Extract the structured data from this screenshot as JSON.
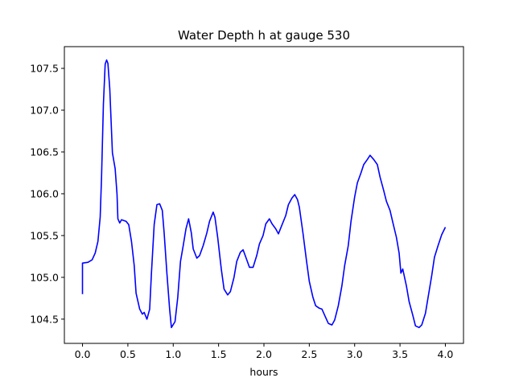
{
  "chart_data": {
    "type": "line",
    "title": "Water Depth h at gauge 530",
    "xlabel": "hours",
    "ylabel": "",
    "xlim": [
      -0.2,
      4.2
    ],
    "ylim": [
      104.21,
      107.76
    ],
    "xticks": [
      0.0,
      0.5,
      1.0,
      1.5,
      2.0,
      2.5,
      3.0,
      3.5,
      4.0
    ],
    "xtick_labels": [
      "0.0",
      "0.5",
      "1.0",
      "1.5",
      "2.0",
      "2.5",
      "3.0",
      "3.5",
      "4.0"
    ],
    "yticks": [
      104.5,
      105.0,
      105.5,
      106.0,
      106.5,
      107.0,
      107.5
    ],
    "ytick_labels": [
      "104.5",
      "105.0",
      "105.5",
      "106.0",
      "106.5",
      "107.0",
      "107.5"
    ],
    "grid": false,
    "series": [
      {
        "name": "h",
        "color": "#0000ff",
        "x": [
          0,
          0,
          0.06,
          0.106,
          0.14,
          0.17,
          0.195,
          0.21,
          0.23,
          0.25,
          0.266,
          0.28,
          0.3,
          0.33,
          0.36,
          0.38,
          0.39,
          0.41,
          0.43,
          0.48,
          0.51,
          0.54,
          0.57,
          0.59,
          0.63,
          0.66,
          0.68,
          0.71,
          0.74,
          0.76,
          0.79,
          0.82,
          0.85,
          0.88,
          0.9,
          0.93,
          0.96,
          0.98,
          1.02,
          1.05,
          1.08,
          1.11,
          1.14,
          1.17,
          1.2,
          1.22,
          1.26,
          1.29,
          1.33,
          1.37,
          1.4,
          1.44,
          1.46,
          1.49,
          1.53,
          1.56,
          1.6,
          1.63,
          1.67,
          1.7,
          1.74,
          1.77,
          1.8,
          1.84,
          1.88,
          1.92,
          1.95,
          1.99,
          2.02,
          2.06,
          2.09,
          2.13,
          2.16,
          2.2,
          2.24,
          2.27,
          2.31,
          2.34,
          2.37,
          2.39,
          2.43,
          2.47,
          2.5,
          2.54,
          2.57,
          2.61,
          2.64,
          2.68,
          2.71,
          2.75,
          2.78,
          2.82,
          2.86,
          2.89,
          2.93,
          2.96,
          3.0,
          3.03,
          3.07,
          3.1,
          3.14,
          3.17,
          3.21,
          3.25,
          3.28,
          3.32,
          3.35,
          3.39,
          3.42,
          3.46,
          3.49,
          3.51,
          3.53,
          3.57,
          3.6,
          3.64,
          3.67,
          3.71,
          3.74,
          3.78,
          3.81,
          3.85,
          3.88,
          3.92,
          3.96,
          4.0
        ],
        "y": [
          104.8,
          105.17,
          105.18,
          105.21,
          105.29,
          105.43,
          105.72,
          106.2,
          107.07,
          107.55,
          107.6,
          107.56,
          107.26,
          106.49,
          106.3,
          106.0,
          105.7,
          105.65,
          105.69,
          105.67,
          105.63,
          105.43,
          105.14,
          104.81,
          104.62,
          104.56,
          104.58,
          104.5,
          104.62,
          105.05,
          105.63,
          105.87,
          105.88,
          105.8,
          105.53,
          105.05,
          104.62,
          104.4,
          104.47,
          104.76,
          105.19,
          105.38,
          105.58,
          105.7,
          105.53,
          105.34,
          105.23,
          105.26,
          105.38,
          105.53,
          105.67,
          105.78,
          105.72,
          105.48,
          105.1,
          104.86,
          104.79,
          104.83,
          105.0,
          105.19,
          105.3,
          105.33,
          105.24,
          105.12,
          105.12,
          105.26,
          105.4,
          105.5,
          105.64,
          105.7,
          105.64,
          105.58,
          105.52,
          105.63,
          105.74,
          105.87,
          105.95,
          105.99,
          105.93,
          105.84,
          105.53,
          105.19,
          104.95,
          104.76,
          104.66,
          104.63,
          104.62,
          104.52,
          104.45,
          104.43,
          104.49,
          104.66,
          104.9,
          105.14,
          105.38,
          105.67,
          105.96,
          106.13,
          106.25,
          106.35,
          106.41,
          106.46,
          106.41,
          106.35,
          106.2,
          106.04,
          105.91,
          105.8,
          105.66,
          105.48,
          105.29,
          105.05,
          105.1,
          104.9,
          104.71,
          104.55,
          104.42,
          104.4,
          104.43,
          104.57,
          104.76,
          105.02,
          105.24,
          105.38,
          105.51,
          105.6
        ]
      }
    ]
  }
}
